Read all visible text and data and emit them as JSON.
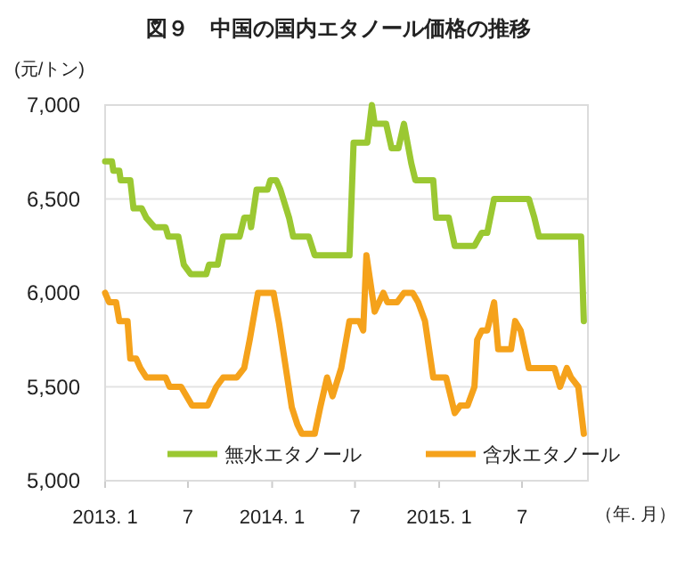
{
  "chart_data": {
    "type": "line",
    "title": "図９　中国の国内エタノール価格の推移",
    "ylabel": "(元/トン)",
    "xlabel": "（年. 月）",
    "xlim": [
      "2013-01-01",
      "2015-11-22"
    ],
    "xticks": [
      {
        "value": "2013-01",
        "label": "2013. 1"
      },
      {
        "value": "2013-07",
        "label": "7"
      },
      {
        "value": "2014-01",
        "label": "2014. 1"
      },
      {
        "value": "2014-07",
        "label": "7"
      },
      {
        "value": "2015-01",
        "label": "2015. 1"
      },
      {
        "value": "2015-07",
        "label": "7"
      }
    ],
    "ylim": [
      5000,
      7000
    ],
    "yticks": [
      {
        "value": 5000,
        "label": "5,000"
      },
      {
        "value": 5500,
        "label": "5,500"
      },
      {
        "value": 6000,
        "label": "6,000"
      },
      {
        "value": 6500,
        "label": "6,500"
      },
      {
        "value": 7000,
        "label": "7,000"
      }
    ],
    "grid": "y",
    "legend": "bottom",
    "marker": "none",
    "line_style": "solid",
    "series": [
      {
        "name": "無水エタノール",
        "color": "#9bc832",
        "x": [
          "2013-01-01",
          "2013-01-16",
          "2013-01-19",
          "2013-02-01",
          "2013-02-04",
          "2013-02-25",
          "2013-03-04",
          "2013-03-22",
          "2013-04-01",
          "2013-04-19",
          "2013-05-13",
          "2013-05-19",
          "2013-06-10",
          "2013-06-22",
          "2013-07-07",
          "2013-08-10",
          "2013-08-16",
          "2013-09-04",
          "2013-09-16",
          "2013-10-22",
          "2013-11-01",
          "2013-11-13",
          "2013-11-16",
          "2013-11-28",
          "2013-12-22",
          "2013-12-28",
          "2014-01-10",
          "2014-01-19",
          "2014-02-07",
          "2014-02-16",
          "2014-03-22",
          "2014-04-04",
          "2014-06-19",
          "2014-06-28",
          "2014-07-28",
          "2014-08-07",
          "2014-08-13",
          "2014-09-07",
          "2014-09-19",
          "2014-10-04",
          "2014-10-16",
          "2014-11-01",
          "2014-11-10",
          "2014-12-19",
          "2014-12-25",
          "2015-01-22",
          "2015-02-04",
          "2015-03-19",
          "2015-04-04",
          "2015-04-16",
          "2015-05-01",
          "2015-07-16",
          "2015-07-28",
          "2015-08-07",
          "2015-11-07",
          "2015-11-13"
        ],
        "values": [
          6700,
          6700,
          6650,
          6650,
          6600,
          6600,
          6450,
          6450,
          6400,
          6350,
          6350,
          6300,
          6300,
          6150,
          6100,
          6100,
          6150,
          6150,
          6300,
          6300,
          6400,
          6400,
          6350,
          6550,
          6550,
          6600,
          6600,
          6550,
          6400,
          6300,
          6300,
          6200,
          6200,
          6800,
          6800,
          7000,
          6900,
          6900,
          6770,
          6770,
          6900,
          6690,
          6600,
          6600,
          6400,
          6400,
          6250,
          6250,
          6320,
          6320,
          6500,
          6500,
          6400,
          6300,
          6300,
          5850
        ]
      },
      {
        "name": "含水エタノール",
        "color": "#f5a21b",
        "x": [
          "2013-01-01",
          "2013-01-10",
          "2013-01-25",
          "2013-02-01",
          "2013-02-19",
          "2013-02-25",
          "2013-03-10",
          "2013-03-19",
          "2013-04-01",
          "2013-05-13",
          "2013-05-22",
          "2013-06-16",
          "2013-06-28",
          "2013-07-10",
          "2013-08-13",
          "2013-09-01",
          "2013-09-16",
          "2013-10-16",
          "2013-11-01",
          "2013-11-13",
          "2013-12-01",
          "2014-01-04",
          "2014-01-16",
          "2014-02-13",
          "2014-02-25",
          "2014-03-07",
          "2014-04-04",
          "2014-04-16",
          "2014-05-01",
          "2014-05-13",
          "2014-06-01",
          "2014-06-19",
          "2014-07-10",
          "2014-07-19",
          "2014-07-26",
          "2014-08-13",
          "2014-09-01",
          "2014-09-10",
          "2014-10-01",
          "2014-10-16",
          "2014-11-04",
          "2014-11-16",
          "2014-12-01",
          "2014-12-19",
          "2015-01-16",
          "2015-02-04",
          "2015-02-16",
          "2015-03-04",
          "2015-03-19",
          "2015-03-25",
          "2015-04-04",
          "2015-04-16",
          "2015-05-01",
          "2015-05-10",
          "2015-06-07",
          "2015-06-16",
          "2015-06-28",
          "2015-07-16",
          "2015-09-10",
          "2015-09-22",
          "2015-10-07",
          "2015-10-16",
          "2015-11-01",
          "2015-11-13"
        ],
        "values": [
          6000,
          5950,
          5950,
          5850,
          5850,
          5650,
          5650,
          5600,
          5550,
          5550,
          5500,
          5500,
          5450,
          5400,
          5400,
          5500,
          5550,
          5550,
          5600,
          5750,
          6000,
          6000,
          5840,
          5390,
          5300,
          5250,
          5250,
          5390,
          5550,
          5450,
          5600,
          5850,
          5850,
          5800,
          6200,
          5900,
          6000,
          5950,
          5950,
          6000,
          6000,
          5950,
          5850,
          5550,
          5550,
          5360,
          5400,
          5400,
          5500,
          5750,
          5800,
          5800,
          5950,
          5700,
          5700,
          5850,
          5800,
          5600,
          5600,
          5500,
          5600,
          5550,
          5500,
          5250
        ]
      }
    ]
  }
}
